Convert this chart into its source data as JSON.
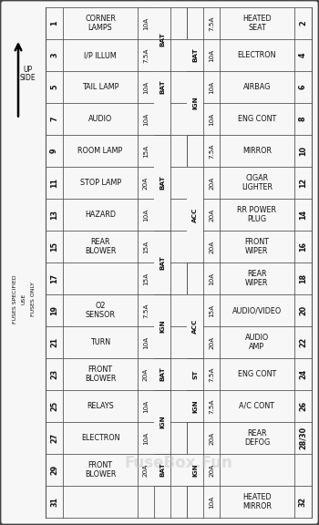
{
  "rows": [
    {
      "ln": "1",
      "lname": "CORNER\nLAMPS",
      "lamp": "10A",
      "lbus": "BAT",
      "rbus": "",
      "ramp": "7.5A",
      "rname": "HEATED\nSEAT",
      "rn": "2"
    },
    {
      "ln": "3",
      "lname": "I/P ILLUM",
      "lamp": "7.5A",
      "lbus": "BAT",
      "rbus": "BAT",
      "ramp": "10A",
      "rname": "ELECTRON",
      "rn": "4"
    },
    {
      "ln": "5",
      "lname": "TAIL LAMP",
      "lamp": "10A",
      "lbus": "",
      "rbus": "IGN",
      "ramp": "10A",
      "rname": "AIRBAG",
      "rn": "6"
    },
    {
      "ln": "7",
      "lname": "AUDIO",
      "lamp": "10A",
      "lbus": "",
      "rbus": "",
      "ramp": "10A",
      "rname": "ENG CONT",
      "rn": "8"
    },
    {
      "ln": "9",
      "lname": "ROOM LAMP",
      "lamp": "15A",
      "lbus": "BAT",
      "rbus": "",
      "ramp": "7.5A",
      "rname": "MIRROR",
      "rn": "10"
    },
    {
      "ln": "11",
      "lname": "STOP LAMP",
      "lamp": "20A",
      "lbus": "",
      "rbus": "ACC",
      "ramp": "20A",
      "rname": "CIGAR\nLIGHTER",
      "rn": "12"
    },
    {
      "ln": "13",
      "lname": "HAZARD",
      "lamp": "10A",
      "lbus": "",
      "rbus": "",
      "ramp": "20A",
      "rname": "RR POWER\nPLUG",
      "rn": "14"
    },
    {
      "ln": "15",
      "lname": "REAR\nBLOWER",
      "lamp": "15A",
      "lbus": "BAT",
      "rbus": "",
      "ramp": "20A",
      "rname": "FRONT\nWIPER",
      "rn": "16"
    },
    {
      "ln": "17",
      "lname": "",
      "lamp": "15A",
      "lbus": "",
      "rbus": "",
      "ramp": "10A",
      "rname": "REAR\nWIPER",
      "rn": "18"
    },
    {
      "ln": "19",
      "lname": "O2\nSENSOR",
      "lamp": "7.5A",
      "lbus": "IGN",
      "rbus": "ACC",
      "ramp": "15A",
      "rname": "AUDIO/VIDEO",
      "rn": "20"
    },
    {
      "ln": "21",
      "lname": "TURN",
      "lamp": "10A",
      "lbus": "IGN",
      "rbus": "",
      "ramp": "20A",
      "rname": "AUDIO\nAMP",
      "rn": "22"
    },
    {
      "ln": "23",
      "lname": "FRONT\nBLOWER",
      "lamp": "20A",
      "lbus": "BAT",
      "rbus": "ST",
      "ramp": "7.5A",
      "rname": "ENG CONT",
      "rn": "24"
    },
    {
      "ln": "25",
      "lname": "RELAYS",
      "lamp": "10A",
      "lbus": "IGN",
      "rbus": "IGN",
      "ramp": "7.5A",
      "rname": "A/C CONT",
      "rn": "26"
    },
    {
      "ln": "27",
      "lname": "ELECTRON",
      "lamp": "10A",
      "lbus": "IGN",
      "rbus": "",
      "ramp": "20A",
      "rname": "REAR\nDEFOG",
      "rn": "28/30"
    },
    {
      "ln": "29",
      "lname": "FRONT\nBLOWER",
      "lamp": "20A",
      "lbus": "BAT",
      "rbus": "IGN",
      "ramp": "20A",
      "rname": "",
      "rn": ""
    },
    {
      "ln": "31",
      "lname": "",
      "lamp": "",
      "lbus": "",
      "rbus": "",
      "ramp": "10A",
      "rname": "HEATED\nMIRROR",
      "rn": "32"
    }
  ],
  "left_bus_spans": [
    [
      0,
      2,
      "BAT"
    ],
    [
      1,
      4,
      "BAT"
    ],
    [
      4,
      7,
      "BAT"
    ],
    [
      7,
      9,
      "BAT"
    ],
    [
      9,
      11,
      "IGN"
    ],
    [
      11,
      12,
      "BAT"
    ],
    [
      12,
      14,
      "IGN"
    ],
    [
      14,
      15,
      "BAT"
    ]
  ],
  "right_bus_spans": [
    [
      1,
      2,
      "BAT"
    ],
    [
      2,
      4,
      "IGN"
    ],
    [
      5,
      8,
      "ACC"
    ],
    [
      9,
      11,
      "ACC"
    ],
    [
      11,
      12,
      "ST"
    ],
    [
      12,
      13,
      "IGN"
    ],
    [
      14,
      15,
      "IGN"
    ]
  ],
  "watermark": "FuseBox.Fun",
  "watermark_color": "#c8c8c8",
  "bg_color": "#ffffff",
  "border_color": "#444444",
  "line_color": "#555555",
  "text_color": "#111111"
}
